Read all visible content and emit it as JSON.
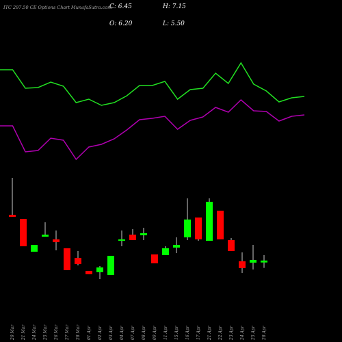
{
  "header": {
    "title": "ITC 297.50  CE Options  Chart MunafaSutra.com",
    "ohlc": [
      "C: 6.45",
      "H: 7.15",
      "O: 6.20",
      "L: 5.50"
    ]
  },
  "chart_data": [
    {
      "type": "line",
      "ylim": [
        0,
        100
      ],
      "series": [
        {
          "color": "#22e022",
          "values": [
            79,
            79,
            65.5,
            66,
            70,
            67,
            55,
            57.5,
            53,
            55,
            60,
            67.5,
            67.5,
            70.5,
            57.5,
            64.5,
            65.5,
            76.5,
            69,
            84,
            68.5,
            63.5,
            55.5,
            58.5,
            59.5
          ]
        },
        {
          "color": "#b000b0",
          "values": [
            38,
            38,
            19,
            20,
            29,
            27.5,
            13.5,
            22.5,
            24.5,
            28.5,
            35,
            42.5,
            43.5,
            45,
            35.5,
            42,
            44.5,
            51.5,
            48,
            57,
            49,
            48.5,
            41.5,
            45,
            46
          ]
        }
      ]
    },
    {
      "type": "candlestick",
      "ylim": [
        3,
        18
      ],
      "up_color": "#00ff00",
      "down_color": "#ff0000",
      "categories": [
        "20 Mar",
        "21 Mar",
        "24 Mar",
        "25 Mar",
        "26 Mar",
        "27 Mar",
        "28 Mar",
        "01 Apr",
        "02 Apr",
        "03 Apr",
        "04 Apr",
        "07 Apr",
        "08 Apr",
        "09 Apr",
        "11 Apr",
        "15 Apr",
        "16 Apr",
        "17 Apr",
        "21 Apr",
        "22 Apr",
        "23 Apr",
        "24 Apr",
        "25 Apr",
        "28 Apr"
      ],
      "open": [
        12.35,
        11.82,
        7.59,
        9.53,
        9.18,
        8.03,
        6.79,
        5.12,
        4.94,
        4.59,
        9.0,
        9.79,
        9.71,
        7.24,
        7.15,
        8.12,
        9.44,
        12.0,
        9.0,
        12.88,
        9.09,
        6.35,
        6.18,
        6.2
      ],
      "high": [
        17.12,
        11.82,
        8.47,
        11.38,
        10.32,
        8.03,
        7.68,
        5.12,
        5.74,
        7.06,
        10.32,
        10.5,
        10.68,
        7.24,
        8.29,
        9.44,
        14.47,
        12.0,
        14.47,
        12.88,
        9.35,
        7.5,
        8.47,
        7.15
      ],
      "low": [
        12.09,
        8.29,
        7.59,
        9.53,
        7.76,
        5.21,
        5.82,
        4.68,
        4.06,
        4.59,
        8.29,
        9.09,
        9.09,
        6.09,
        7.15,
        7.41,
        9.09,
        9.0,
        9.0,
        9.18,
        7.68,
        4.85,
        5.29,
        5.5
      ],
      "close": [
        12.09,
        8.29,
        8.47,
        9.79,
        8.82,
        5.21,
        6.0,
        4.68,
        5.56,
        7.06,
        9.18,
        9.09,
        9.97,
        6.09,
        8.03,
        8.47,
        11.74,
        9.18,
        14.03,
        9.18,
        7.68,
        5.47,
        6.53,
        6.45
      ]
    }
  ]
}
